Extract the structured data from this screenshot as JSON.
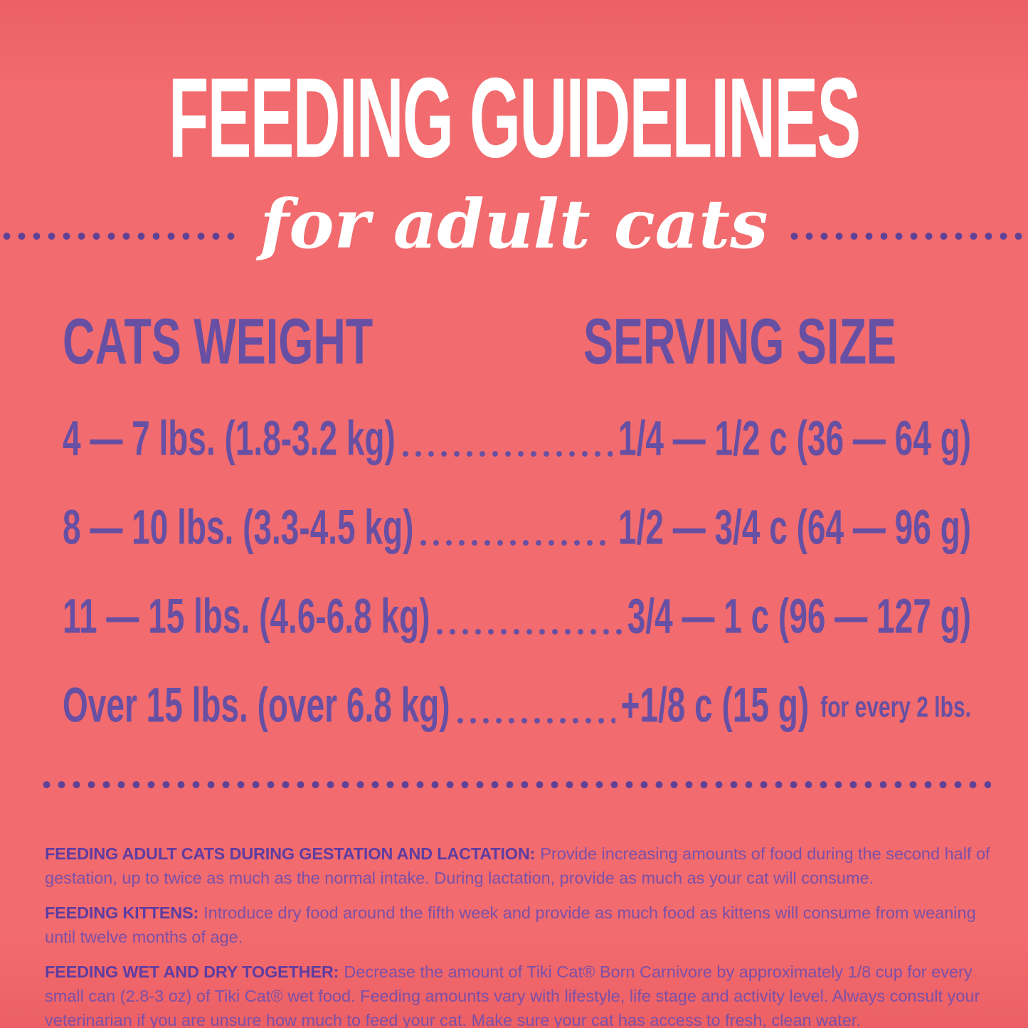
{
  "theme": {
    "bg": "#f26b6e",
    "white": "#ffffff",
    "purple": "#6750a3",
    "purple-dot": "#5f4296",
    "purple-fine": "#7b50a7"
  },
  "header": {
    "title": "FEEDING GUIDELINES",
    "subtitle": "for adult cats"
  },
  "table": {
    "col1_header": "CATS WEIGHT",
    "col2_header": "SERVING SIZE",
    "rows": [
      {
        "weight": "4 — 7 lbs. (1.8-3.2 kg)",
        "serving": "1/4 — 1/2 c (36 — 64 g)",
        "note": ""
      },
      {
        "weight": "8 — 10 lbs. (3.3-4.5 kg)",
        "serving": "1/2 — 3/4 c (64 — 96 g)",
        "note": ""
      },
      {
        "weight": "11 — 15 lbs. (4.6-6.8 kg)",
        "serving": "3/4 — 1 c (96 — 127 g)",
        "note": ""
      },
      {
        "weight": "Over 15 lbs. (over 6.8 kg)",
        "serving": "+1/8 c (15 g)",
        "note": "for every 2 lbs."
      }
    ]
  },
  "footnotes": [
    {
      "label": "FEEDING ADULT CATS DURING GESTATION AND LACTATION:",
      "text": "Provide increasing amounts of food during the second half of gestation, up to twice as much as the normal intake.  During lactation, provide as much as your cat will consume."
    },
    {
      "label": "FEEDING KITTENS:",
      "text": "Introduce dry food around the fifth week and provide as much food as kittens will consume from weaning until twelve months of age."
    },
    {
      "label": "FEEDING WET AND DRY TOGETHER:",
      "text": "Decrease the amount of Tiki Cat® Born Carnivore by approximately 1/8 cup for every small can (2.8-3 oz) of Tiki Cat® wet food. Feeding amounts vary with lifestyle, life stage and activity level.  Always consult your veterinarian if you are unsure how much to feed your cat. Make sure your cat has access to fresh, clean water."
    }
  ]
}
